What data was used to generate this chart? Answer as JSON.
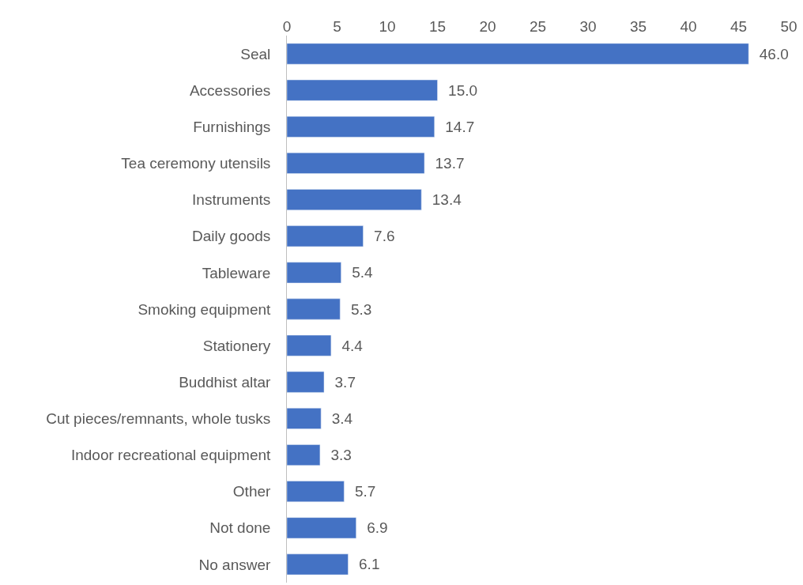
{
  "chart_data": {
    "type": "bar",
    "orientation": "horizontal",
    "categories": [
      "Seal",
      "Accessories",
      "Furnishings",
      "Tea ceremony utensils",
      "Instruments",
      "Daily goods",
      "Tableware",
      "Smoking equipment",
      "Stationery",
      "Buddhist altar",
      "Cut pieces/remnants, whole tusks",
      "Indoor recreational equipment",
      "Other",
      "Not done",
      "No answer"
    ],
    "values": [
      46.0,
      15.0,
      14.7,
      13.7,
      13.4,
      7.6,
      5.4,
      5.3,
      4.4,
      3.7,
      3.4,
      3.3,
      5.7,
      6.9,
      6.1
    ],
    "color": "#4472c4",
    "xlim": [
      0,
      50
    ],
    "xticks": [
      0,
      5,
      10,
      15,
      20,
      25,
      30,
      35,
      40,
      45,
      50
    ],
    "value_labels": [
      "46.0",
      "15.0",
      "14.7",
      "13.7",
      "13.4",
      "7.6",
      "5.4",
      "5.3",
      "4.4",
      "3.7",
      "3.4",
      "3.3",
      "5.7",
      "6.9",
      "6.1"
    ],
    "grid": false
  }
}
